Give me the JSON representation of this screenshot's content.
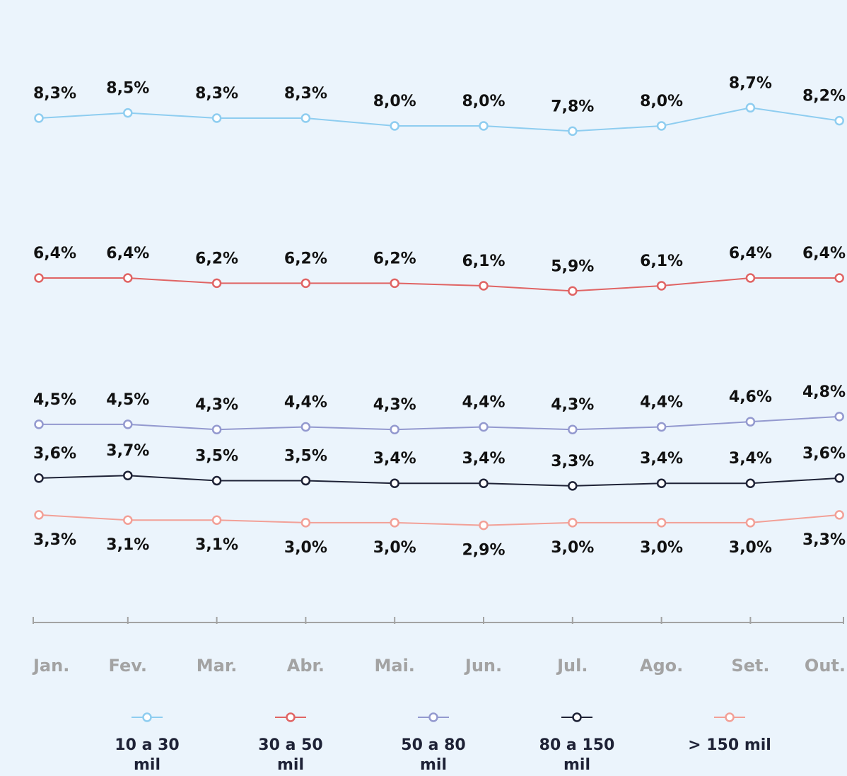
{
  "chart_data": {
    "type": "line",
    "categories": [
      "Jan.",
      "Fev.",
      "Mar.",
      "Abr.",
      "Mai.",
      "Jun.",
      "Jul.",
      "Ago.",
      "Set.",
      "Out."
    ],
    "series": [
      {
        "name": "10 a 30 mil",
        "color": "#8ecdf0",
        "values": [
          8.3,
          8.5,
          8.3,
          8.3,
          8.0,
          8.0,
          7.8,
          8.0,
          8.7,
          8.2
        ],
        "value_labels": [
          "8,3%",
          "8,5%",
          "8,3%",
          "8,3%",
          "8,0%",
          "8,0%",
          "7,8%",
          "8,0%",
          "8,7%",
          "8,2%"
        ]
      },
      {
        "name": "30 a 50 mil",
        "color": "#e06464",
        "values": [
          6.4,
          6.4,
          6.2,
          6.2,
          6.2,
          6.1,
          5.9,
          6.1,
          6.4,
          6.4
        ],
        "value_labels": [
          "6,4%",
          "6,4%",
          "6,2%",
          "6,2%",
          "6,2%",
          "6,1%",
          "5,9%",
          "6,1%",
          "6,4%",
          "6,4%"
        ]
      },
      {
        "name": "50 a 80 mil",
        "color": "#9399cf",
        "values": [
          4.5,
          4.5,
          4.3,
          4.4,
          4.3,
          4.4,
          4.3,
          4.4,
          4.6,
          4.8
        ],
        "value_labels": [
          "4,5%",
          "4,5%",
          "4,3%",
          "4,4%",
          "4,3%",
          "4,4%",
          "4,3%",
          "4,4%",
          "4,6%",
          "4,8%"
        ]
      },
      {
        "name": "80 a 150 mil",
        "color": "#1e2236",
        "values": [
          3.6,
          3.7,
          3.5,
          3.5,
          3.4,
          3.4,
          3.3,
          3.4,
          3.4,
          3.6
        ],
        "value_labels": [
          "3,6%",
          "3,7%",
          "3,5%",
          "3,5%",
          "3,4%",
          "3,4%",
          "3,3%",
          "3,4%",
          "3,4%",
          "3,6%"
        ]
      },
      {
        "name": "> 150 mil",
        "color": "#f2a097",
        "values": [
          3.3,
          3.1,
          3.1,
          3.0,
          3.0,
          2.9,
          3.0,
          3.0,
          3.0,
          3.3
        ],
        "value_labels": [
          "3,3%",
          "3,1%",
          "3,1%",
          "3,0%",
          "3,0%",
          "2,9%",
          "3,0%",
          "3,0%",
          "3,0%",
          "3,3%"
        ]
      }
    ]
  }
}
